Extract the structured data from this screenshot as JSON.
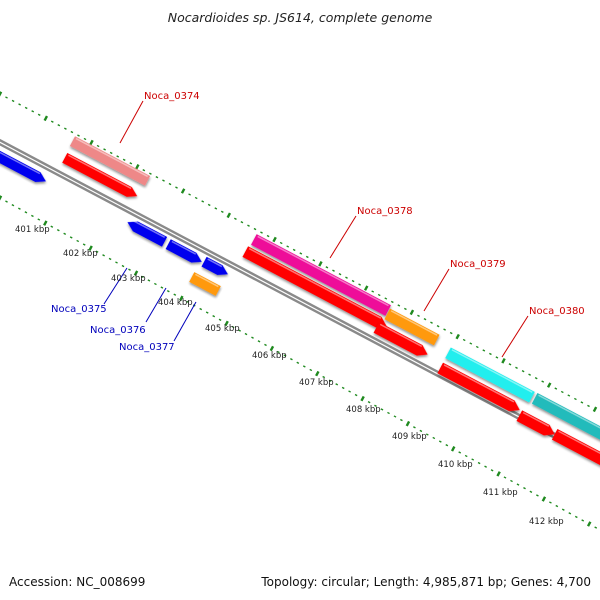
{
  "title": "Nocardioides sp. JS614, complete genome",
  "footer": {
    "accession": "Accession: NC_008699",
    "summary": "Topology: circular; Length: 4,985,871 bp; Genes: 4,700"
  },
  "colors": {
    "label_red": "#cc0000",
    "label_blue": "#0000bb",
    "backbone": "#8a8a8a",
    "ticks": "#1f8a1f",
    "gene_red": "#ff0000",
    "gene_blue": "#0000ee",
    "gene_pink": "#ee8888",
    "gene_magenta": "#ee1199",
    "gene_orange": "#ff9911",
    "gene_cyan": "#22eeee",
    "gene_teal": "#22bbbb"
  },
  "kbp_labels": [
    "401 kbp",
    "402 kbp",
    "403 kbp",
    "404 kbp",
    "405 kbp",
    "406 kbp",
    "407 kbp",
    "408 kbp",
    "409 kbp",
    "410 kbp",
    "411 kbp",
    "412 kbp"
  ],
  "gene_labels_red": [
    "Noca_0374",
    "Noca_0378",
    "Noca_0379",
    "Noca_0380"
  ],
  "gene_labels_blue": [
    "Noca_0375",
    "Noca_0376",
    "Noca_0377"
  ]
}
